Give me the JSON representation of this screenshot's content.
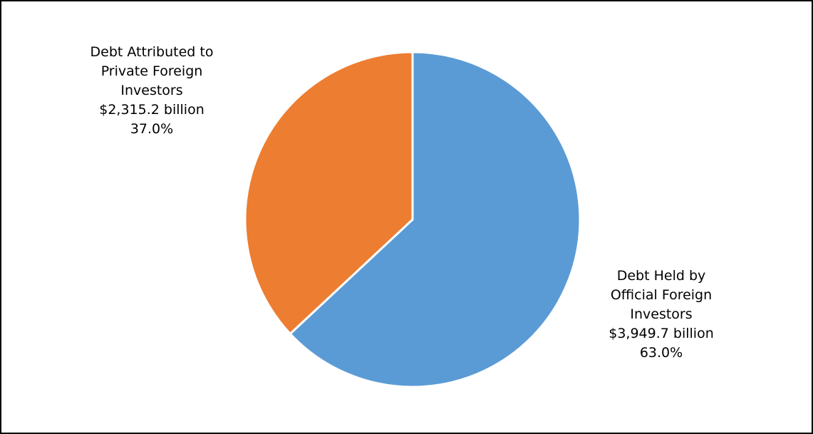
{
  "chart_data": {
    "type": "pie",
    "slices": [
      {
        "name_lines": [
          "Debt Held by",
          "Official Foreign",
          "Investors"
        ],
        "value_label": "$3,949.7 billion",
        "percent_label": "63.0%",
        "value": 3949.7,
        "percent": 63.0,
        "color": "#5B9BD5"
      },
      {
        "name_lines": [
          "Debt Attributed to",
          "Private Foreign",
          "Investors"
        ],
        "value_label": "$2,315.2 billion",
        "percent_label": "37.0%",
        "value": 2315.2,
        "percent": 37.0,
        "color": "#ED7D31"
      }
    ],
    "start_angle": "12 o'clock",
    "direction": "clockwise",
    "separator_color": "#ffffff"
  }
}
